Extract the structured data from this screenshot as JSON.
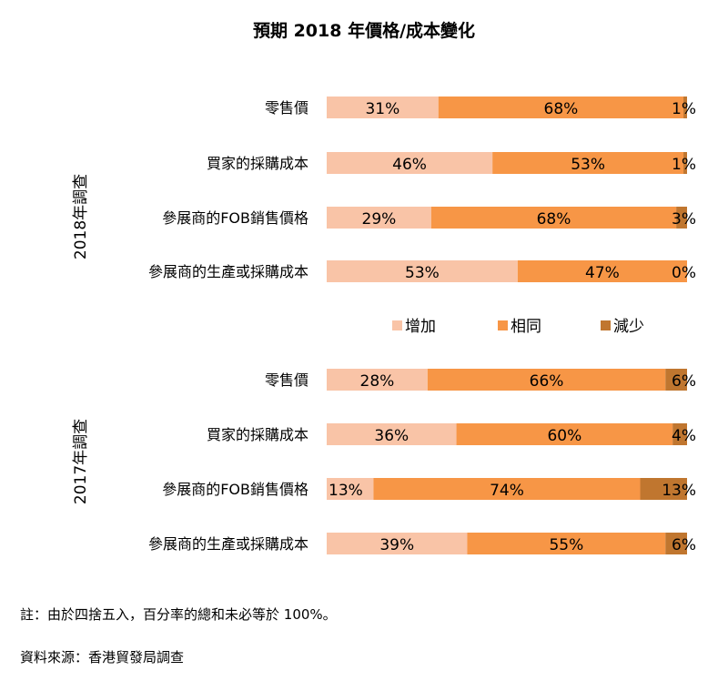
{
  "chart_data": {
    "type": "bar",
    "orientation": "horizontal",
    "stacked": true,
    "percent_stacked": true,
    "title": "預期 2018 年價格/成本變化",
    "xlim": [
      0,
      100
    ],
    "legend_position": "middle",
    "series_names": [
      "增加",
      "相同",
      "減少"
    ],
    "colors": [
      "#f9c4a7",
      "#f79646",
      "#c0762f"
    ],
    "groups": [
      {
        "label": "2018年調查",
        "categories": [
          "零售價",
          "買家的採購成本",
          "參展商的FOB銷售價格",
          "參展商的生產或採購成本"
        ],
        "series": [
          {
            "name": "增加",
            "values": [
              31,
              46,
              29,
              53
            ]
          },
          {
            "name": "相同",
            "values": [
              68,
              53,
              68,
              47
            ]
          },
          {
            "name": "減少",
            "values": [
              1,
              1,
              3,
              0
            ]
          }
        ]
      },
      {
        "label": "2017年調查",
        "categories": [
          "零售價",
          "買家的採購成本",
          "參展商的FOB銷售價格",
          "參展商的生產或採購成本"
        ],
        "series": [
          {
            "name": "增加",
            "values": [
              28,
              36,
              13,
              39
            ]
          },
          {
            "name": "相同",
            "values": [
              66,
              60,
              74,
              55
            ]
          },
          {
            "name": "減少",
            "values": [
              6,
              4,
              13,
              6
            ]
          }
        ]
      }
    ]
  },
  "note": "註：由於四捨五入，百分率的總和未必等於 100%。",
  "source": "資料來源：香港貿發局調查"
}
